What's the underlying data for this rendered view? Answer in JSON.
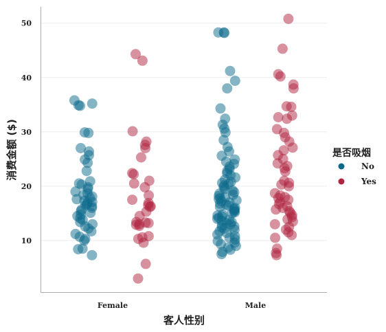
{
  "chart_data": {
    "type": "scatter",
    "subtype": "strip",
    "xlabel": "客人性别",
    "ylabel": "消费金额 ($)",
    "categories": [
      "Female",
      "Male"
    ],
    "ylim": [
      0.5,
      53
    ],
    "yticks": [
      10,
      20,
      30,
      40,
      50
    ],
    "grid": "horizontal",
    "legend": {
      "title": "是否吸烟",
      "placement": "right"
    },
    "series": [
      {
        "name": "No",
        "color": "#0b6a8c",
        "groups": [
          [
            35.8,
            35.2,
            34.8,
            34.9,
            29.8,
            29.9,
            27.0,
            26.4,
            25.7,
            24.9,
            24.3,
            22.8,
            20.9,
            20.5,
            20.3,
            19.8,
            19.5,
            19.0,
            18.7,
            18.4,
            18.1,
            17.9,
            17.6,
            17.3,
            17.1,
            16.9,
            16.7,
            16.5,
            16.3,
            16.0,
            15.7,
            15.4,
            15.1,
            14.8,
            14.5,
            14.1,
            13.8,
            13.4,
            13.0,
            12.6,
            12.2,
            11.7,
            11.2,
            10.7,
            10.3,
            10.0,
            8.5,
            8.4,
            7.3
          ],
          [
            48.3,
            48.2,
            48.3,
            41.2,
            39.4,
            38.0,
            34.3,
            32.4,
            31.3,
            30.6,
            29.9,
            28.5,
            27.2,
            26.4,
            25.6,
            24.9,
            24.5,
            24.1,
            23.6,
            23.2,
            22.8,
            22.4,
            22.0,
            21.6,
            21.2,
            20.8,
            20.6,
            20.4,
            20.1,
            19.8,
            19.5,
            19.2,
            18.9,
            18.6,
            18.4,
            18.2,
            18.0,
            17.8,
            17.6,
            17.4,
            17.2,
            17.0,
            16.8,
            16.6,
            16.4,
            16.2,
            16.0,
            15.8,
            15.6,
            15.4,
            15.2,
            15.0,
            14.8,
            14.6,
            14.4,
            14.2,
            14.0,
            13.8,
            13.6,
            13.4,
            13.2,
            13.0,
            12.8,
            12.6,
            12.4,
            12.2,
            12.0,
            11.7,
            11.4,
            11.1,
            10.8,
            10.5,
            10.2,
            9.9,
            9.6,
            9.3,
            9.0,
            8.7,
            8.3,
            7.9,
            7.5
          ]
        ]
      },
      {
        "name": "Yes",
        "color": "#b0243f",
        "groups": [
          [
            44.3,
            43.1,
            30.1,
            28.2,
            27.6,
            27.0,
            25.3,
            22.4,
            22.2,
            21.0,
            20.5,
            19.8,
            18.3,
            17.5,
            16.9,
            16.5,
            16.3,
            16.2,
            15.3,
            14.5,
            13.4,
            13.3,
            13.2,
            13.0,
            12.9,
            12.7,
            10.8,
            10.6,
            10.3,
            9.6,
            5.7,
            3.0
          ],
          [
            50.8,
            45.3,
            40.6,
            40.2,
            38.7,
            38.0,
            34.7,
            34.6,
            33.0,
            32.7,
            32.4,
            30.5,
            29.8,
            29.0,
            28.2,
            27.1,
            26.6,
            25.7,
            25.0,
            24.2,
            23.7,
            23.3,
            22.7,
            21.0,
            20.6,
            20.3,
            20.0,
            18.7,
            18.3,
            18.0,
            17.8,
            17.5,
            17.1,
            16.7,
            16.3,
            16.0,
            15.7,
            15.4,
            15.1,
            14.7,
            14.3,
            13.9,
            13.5,
            13.0,
            12.5,
            12.0,
            11.5,
            11.0,
            10.5,
            8.5,
            7.7,
            7.3
          ]
        ]
      }
    ]
  }
}
